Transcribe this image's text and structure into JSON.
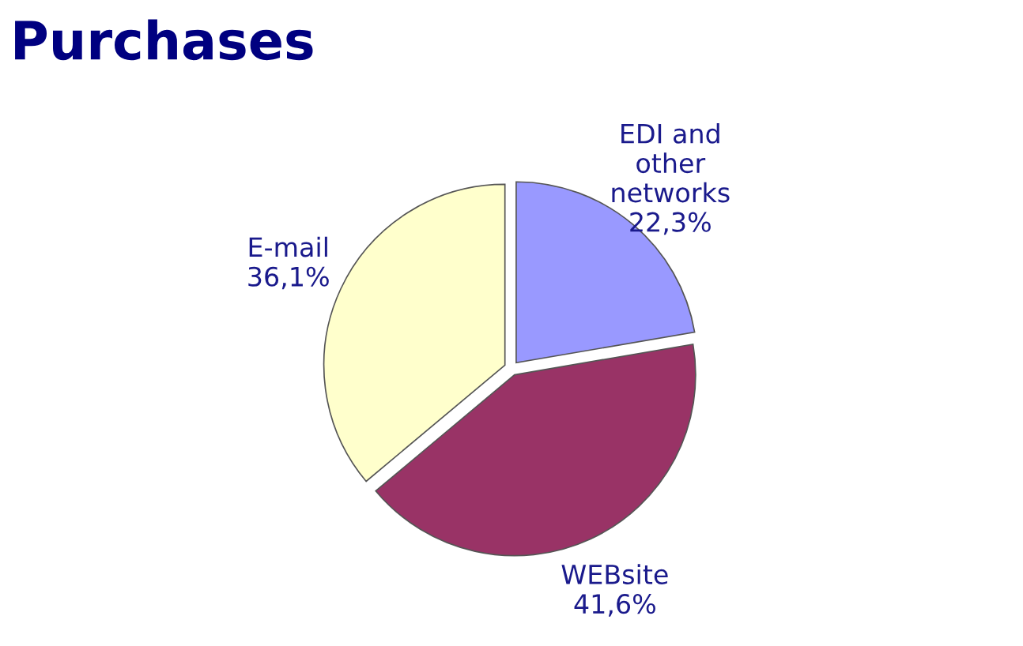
{
  "chart_data": {
    "type": "pie",
    "title": "Purchases",
    "categories": [
      "EDI and\nother\nnetworks",
      "WEBsite",
      "E-mail"
    ],
    "values": [
      22.3,
      41.6,
      36.1
    ],
    "value_labels": [
      "22,3%",
      "41,6%",
      "36,1%"
    ],
    "colors": [
      "#9999ff",
      "#993366",
      "#ffffcc"
    ]
  }
}
